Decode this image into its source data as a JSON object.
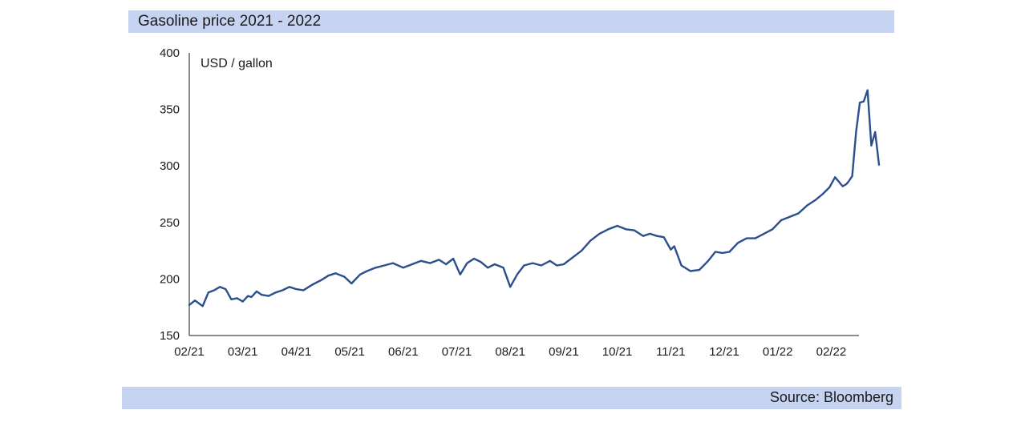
{
  "header": {
    "title": "Gasoline price 2021 - 2022"
  },
  "footer": {
    "source": "Source: Bloomberg"
  },
  "chart_data": {
    "type": "line",
    "title": "Gasoline price 2021 - 2022",
    "ylabel": "USD / gallon",
    "xlabel": "",
    "ylim": [
      150,
      400
    ],
    "yticks": [
      150,
      200,
      250,
      300,
      350,
      400
    ],
    "xticks": [
      "02/21",
      "03/21",
      "04/21",
      "05/21",
      "06/21",
      "07/21",
      "08/21",
      "09/21",
      "10/21",
      "11/21",
      "12/21",
      "01/22",
      "02/22"
    ],
    "grid": false,
    "line_color": "#2b4f8c",
    "series": [
      {
        "x": [
          "2021-02-01",
          "2021-02-04",
          "2021-02-08",
          "2021-02-11",
          "2021-02-14",
          "2021-02-17",
          "2021-02-20",
          "2021-02-23",
          "2021-02-26",
          "2021-03-01",
          "2021-03-04",
          "2021-03-06",
          "2021-03-09",
          "2021-03-12",
          "2021-03-16",
          "2021-03-20",
          "2021-03-24",
          "2021-03-28",
          "2021-04-01",
          "2021-04-05",
          "2021-04-10",
          "2021-04-15",
          "2021-04-19",
          "2021-04-23",
          "2021-04-28",
          "2021-05-02",
          "2021-05-07",
          "2021-05-11",
          "2021-05-16",
          "2021-05-21",
          "2021-05-26",
          "2021-06-01",
          "2021-06-06",
          "2021-06-11",
          "2021-06-16",
          "2021-06-21",
          "2021-06-25",
          "2021-06-29",
          "2021-07-03",
          "2021-07-07",
          "2021-07-11",
          "2021-07-15",
          "2021-07-19",
          "2021-07-23",
          "2021-07-28",
          "2021-08-01",
          "2021-08-05",
          "2021-08-09",
          "2021-08-14",
          "2021-08-19",
          "2021-08-24",
          "2021-08-28",
          "2021-09-01",
          "2021-09-06",
          "2021-09-11",
          "2021-09-16",
          "2021-09-21",
          "2021-09-26",
          "2021-10-01",
          "2021-10-06",
          "2021-10-11",
          "2021-10-16",
          "2021-10-20",
          "2021-10-24",
          "2021-10-28",
          "2021-11-01",
          "2021-11-03",
          "2021-11-07",
          "2021-11-12",
          "2021-11-17",
          "2021-11-22",
          "2021-11-26",
          "2021-11-30",
          "2021-12-04",
          "2021-12-09",
          "2021-12-14",
          "2021-12-19",
          "2021-12-24",
          "2021-12-29",
          "2022-01-03",
          "2022-01-08",
          "2022-01-13",
          "2022-01-18",
          "2022-01-23",
          "2022-01-27",
          "2022-01-31",
          "2022-02-03",
          "2022-02-07",
          "2022-02-09",
          "2022-02-10",
          "2022-02-12",
          "2022-02-14",
          "2022-02-16",
          "2022-02-18",
          "2022-02-20",
          "2022-02-22",
          "2022-02-24",
          "2022-02-26"
        ],
        "values": [
          177,
          181,
          176,
          188,
          190,
          193,
          191,
          182,
          183,
          180,
          185,
          184,
          189,
          186,
          185,
          188,
          190,
          193,
          191,
          190,
          195,
          199,
          203,
          205,
          202,
          196,
          204,
          207,
          210,
          212,
          214,
          210,
          213,
          216,
          214,
          217,
          213,
          218,
          204,
          214,
          218,
          215,
          210,
          213,
          210,
          193,
          204,
          212,
          214,
          212,
          216,
          212,
          213,
          219,
          225,
          234,
          240,
          244,
          247,
          244,
          243,
          238,
          240,
          238,
          237,
          226,
          229,
          212,
          207,
          208,
          216,
          224,
          223,
          224,
          232,
          236,
          236,
          240,
          244,
          252,
          255,
          258,
          265,
          270,
          275,
          281,
          290,
          282,
          284,
          286,
          291,
          330,
          356,
          357,
          367,
          318,
          330,
          301
        ]
      }
    ]
  }
}
